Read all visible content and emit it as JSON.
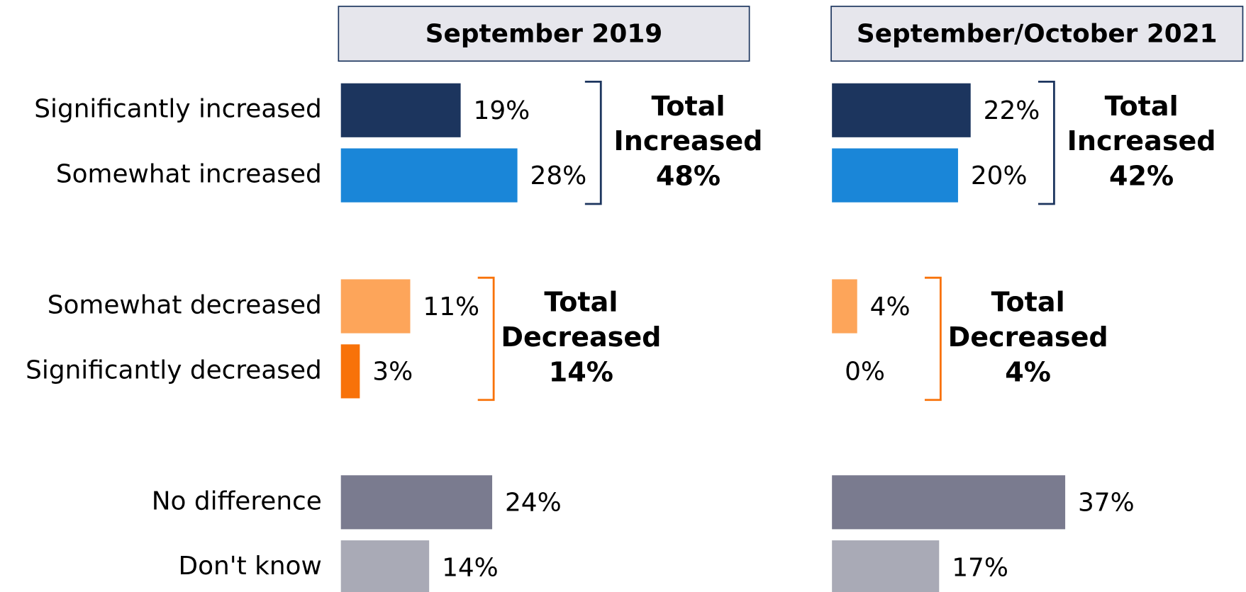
{
  "chart_data": [
    {
      "type": "bar",
      "orientation": "horizontal",
      "title": "September 2019",
      "categories": [
        "Significantly increased",
        "Somewhat increased",
        "Somewhat decreased",
        "Significantly decreased",
        "No difference",
        "Don't know"
      ],
      "values": [
        19,
        28,
        11,
        3,
        24,
        14
      ],
      "value_labels": [
        "19%",
        "28%",
        "11%",
        "3%",
        "24%",
        "14%"
      ],
      "colors": [
        "#1c355e",
        "#1a86d8",
        "#fda55a",
        "#f87209",
        "#7a7b8f",
        "#a9aab6"
      ],
      "xlim": [
        0,
        60
      ],
      "totals": [
        {
          "label": [
            "Total",
            "Increased"
          ],
          "value": 48,
          "value_label": "48%",
          "color": "#1c355e"
        },
        {
          "label": [
            "Total",
            "Decreased"
          ],
          "value": 14,
          "value_label": "14%",
          "color": "#f87209"
        }
      ]
    },
    {
      "type": "bar",
      "orientation": "horizontal",
      "title": "September/October 2021",
      "values": [
        22,
        20,
        4,
        0,
        37,
        17
      ],
      "value_labels": [
        "22%",
        "20%",
        "4%",
        "0%",
        "37%",
        "17%"
      ],
      "colors": [
        "#1c355e",
        "#1a86d8",
        "#fda55a",
        "#f87209",
        "#7a7b8f",
        "#a9aab6"
      ],
      "xlim": [
        0,
        60
      ],
      "totals": [
        {
          "label": [
            "Total",
            "Increased"
          ],
          "value": 42,
          "value_label": "42%",
          "color": "#1c355e"
        },
        {
          "label": [
            "Total",
            "Decreased"
          ],
          "value": 4,
          "value_label": "4%",
          "color": "#f87209"
        }
      ]
    }
  ]
}
